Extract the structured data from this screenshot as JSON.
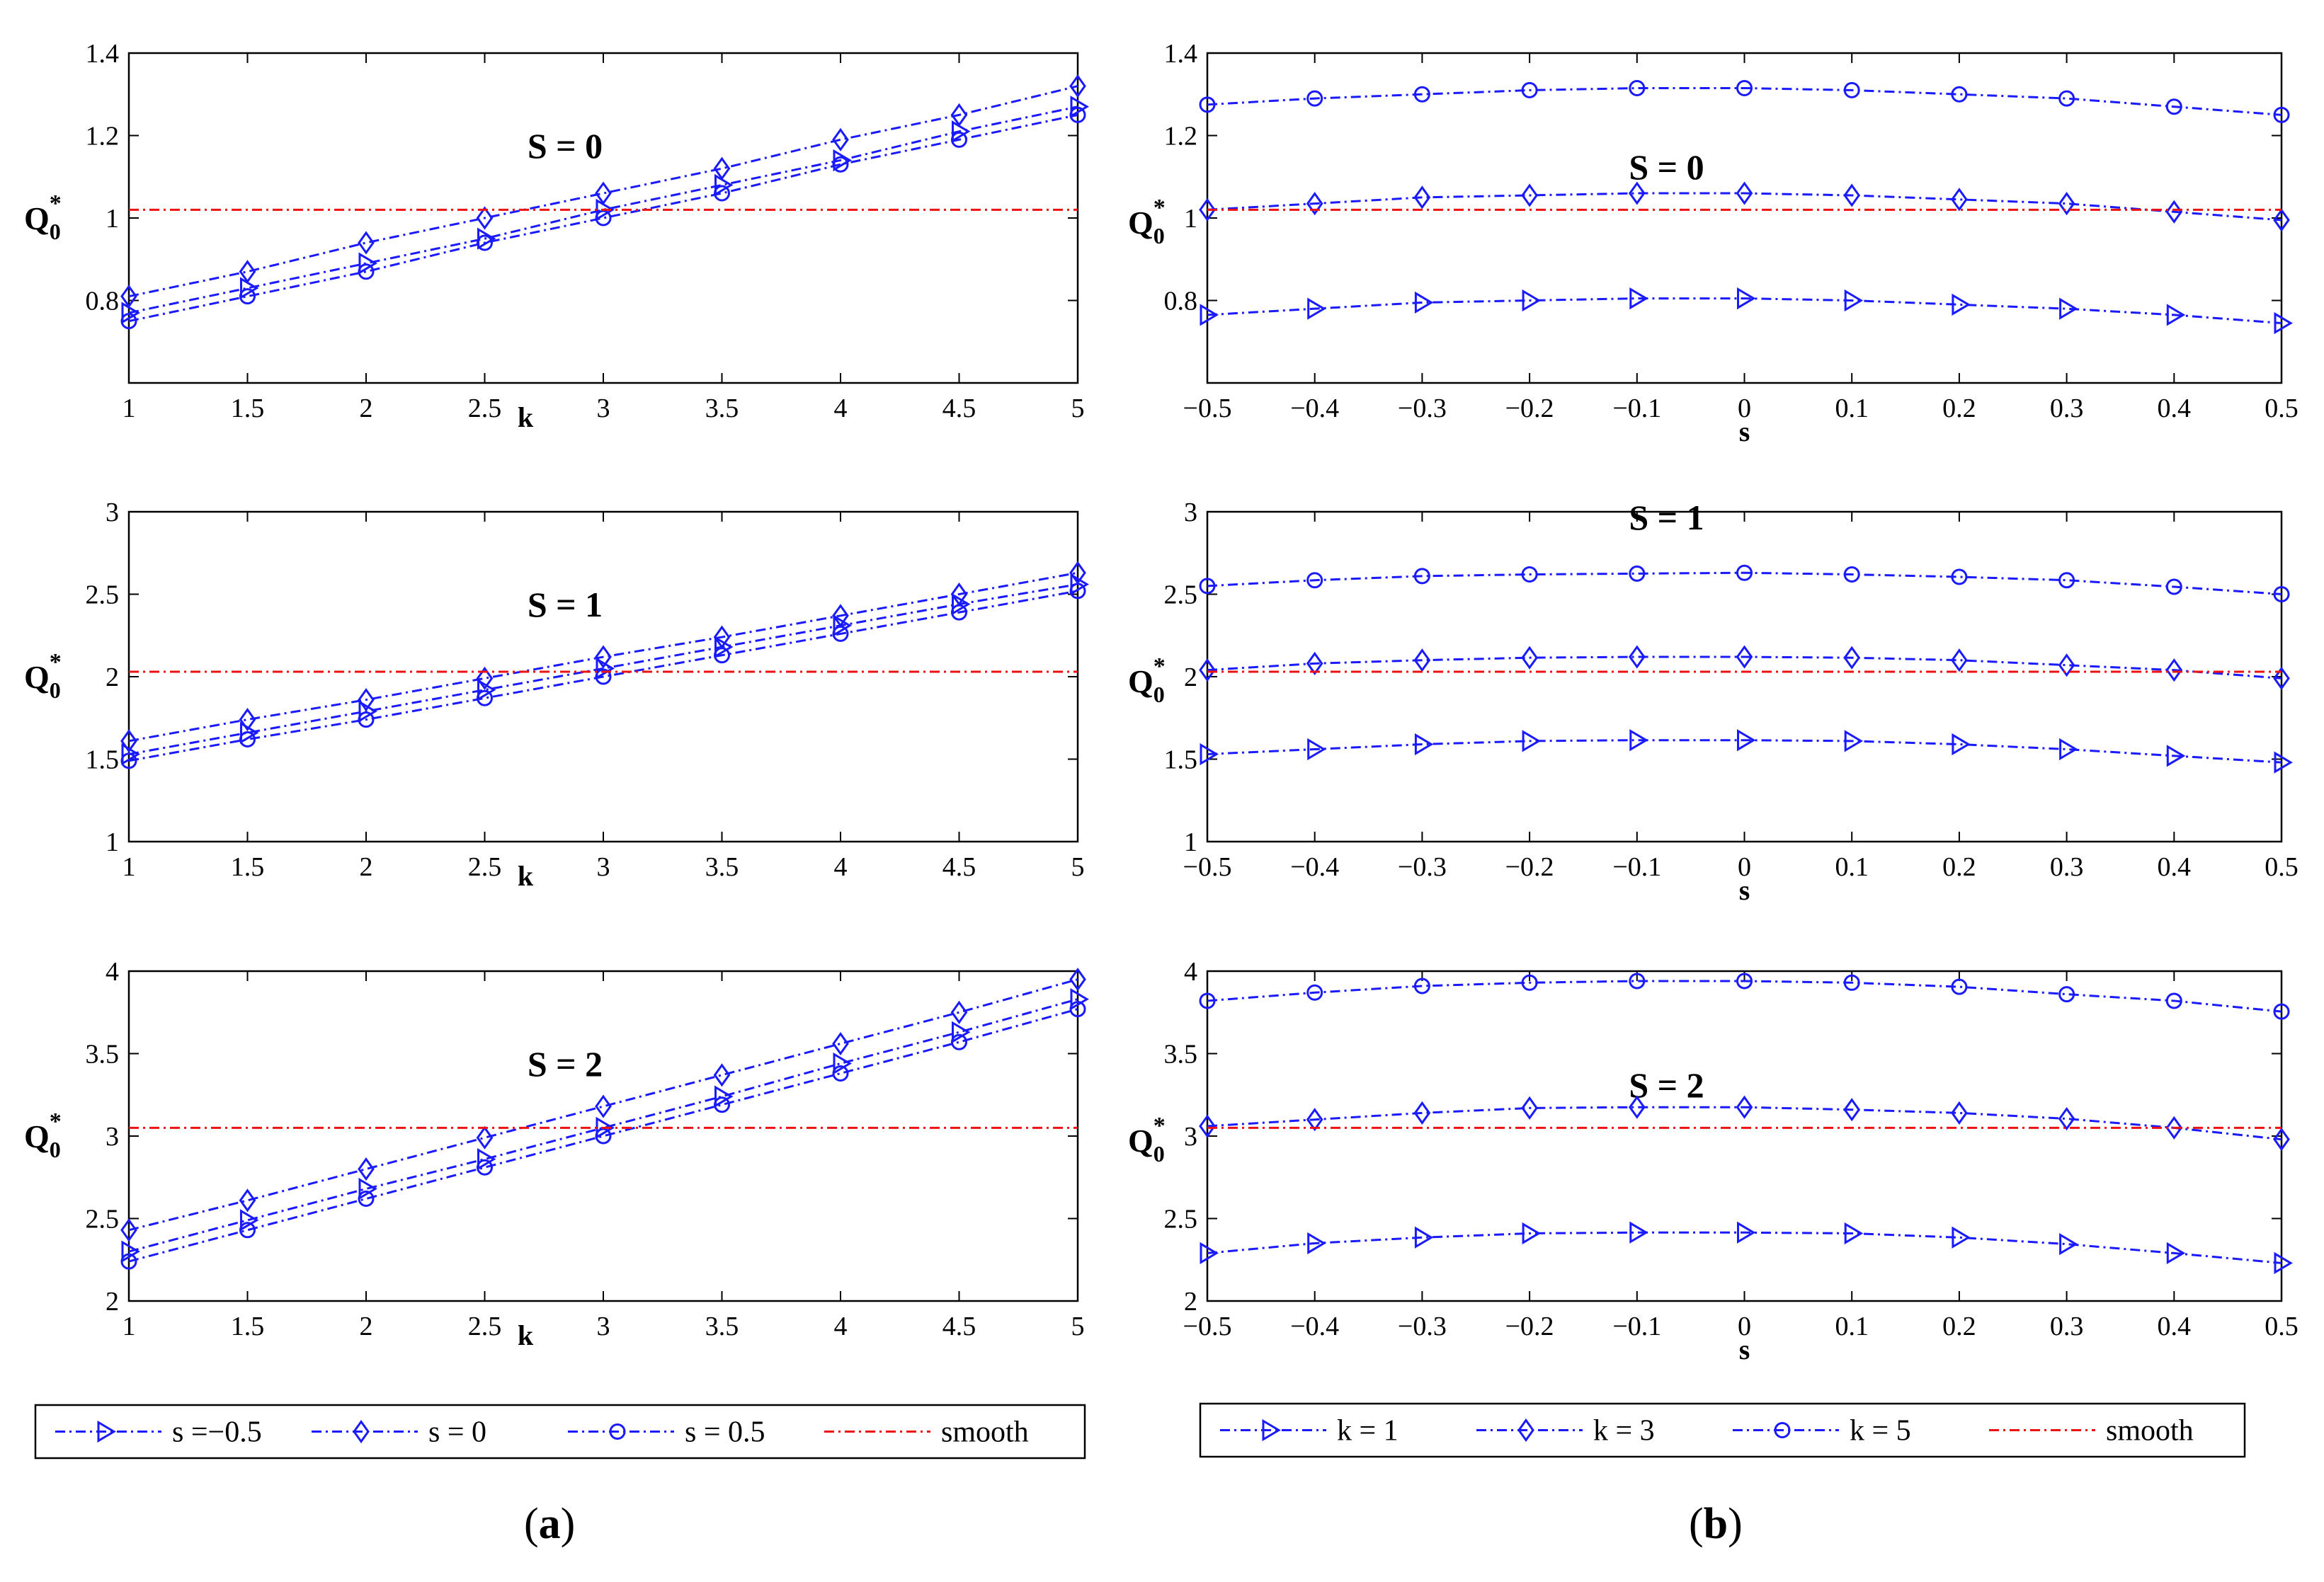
{
  "chart_data": [
    {
      "id": "a1",
      "type": "line",
      "title": "S = 0",
      "xlabel": "k",
      "ylabel": "Q",
      "x": [
        1,
        1.5,
        2,
        2.5,
        3,
        3.5,
        4,
        4.5,
        5
      ],
      "xlim": [
        1,
        5
      ],
      "ylim": [
        0.6,
        1.4
      ],
      "xticks": [
        "1",
        "1.5",
        "2",
        "2.5",
        "3",
        "3.5",
        "4",
        "4.5",
        "5"
      ],
      "yticks": [
        "0.8",
        "1",
        "1.2",
        "1.4"
      ],
      "series": [
        {
          "name": "s =−0.5",
          "marker": "triangle",
          "values": [
            0.77,
            0.83,
            0.89,
            0.95,
            1.02,
            1.08,
            1.14,
            1.21,
            1.27
          ]
        },
        {
          "name": "s = 0",
          "marker": "diamond",
          "values": [
            0.81,
            0.87,
            0.94,
            1.0,
            1.06,
            1.12,
            1.19,
            1.25,
            1.32
          ]
        },
        {
          "name": "s = 0.5",
          "marker": "circle",
          "values": [
            0.75,
            0.81,
            0.87,
            0.94,
            1.0,
            1.06,
            1.13,
            1.19,
            1.25
          ]
        },
        {
          "name": "smooth",
          "marker": "none",
          "values": [
            1.02,
            1.02,
            1.02,
            1.02,
            1.02,
            1.02,
            1.02,
            1.02,
            1.02
          ]
        }
      ]
    },
    {
      "id": "a2",
      "type": "line",
      "title": "S = 1",
      "xlabel": "k",
      "ylabel": "Q",
      "x": [
        1,
        1.5,
        2,
        2.5,
        3,
        3.5,
        4,
        4.5,
        5
      ],
      "xlim": [
        1,
        5
      ],
      "ylim": [
        1,
        3
      ],
      "xticks": [
        "1",
        "1.5",
        "2",
        "2.5",
        "3",
        "3.5",
        "4",
        "4.5",
        "5"
      ],
      "yticks": [
        "1",
        "1.5",
        "2",
        "2.5",
        "3"
      ],
      "series": [
        {
          "name": "s =−0.5",
          "marker": "triangle",
          "values": [
            1.53,
            1.66,
            1.79,
            1.92,
            2.05,
            2.18,
            2.31,
            2.44,
            2.56
          ]
        },
        {
          "name": "s = 0",
          "marker": "diamond",
          "values": [
            1.61,
            1.74,
            1.86,
            1.99,
            2.12,
            2.24,
            2.37,
            2.5,
            2.63
          ]
        },
        {
          "name": "s = 0.5",
          "marker": "circle",
          "values": [
            1.49,
            1.62,
            1.74,
            1.87,
            2.0,
            2.13,
            2.26,
            2.39,
            2.52
          ]
        },
        {
          "name": "smooth",
          "marker": "none",
          "values": [
            2.03,
            2.03,
            2.03,
            2.03,
            2.03,
            2.03,
            2.03,
            2.03,
            2.03
          ]
        }
      ]
    },
    {
      "id": "a3",
      "type": "line",
      "title": "S = 2",
      "xlabel": "k",
      "ylabel": "Q",
      "x": [
        1,
        1.5,
        2,
        2.5,
        3,
        3.5,
        4,
        4.5,
        5
      ],
      "xlim": [
        1,
        5
      ],
      "ylim": [
        2,
        4
      ],
      "xticks": [
        "1",
        "1.5",
        "2",
        "2.5",
        "3",
        "3.5",
        "4",
        "4.5",
        "5"
      ],
      "yticks": [
        "2",
        "2.5",
        "3",
        "3.5",
        "4"
      ],
      "series": [
        {
          "name": "s =−0.5",
          "marker": "triangle",
          "values": [
            2.3,
            2.49,
            2.68,
            2.86,
            3.05,
            3.24,
            3.44,
            3.63,
            3.83
          ]
        },
        {
          "name": "s = 0",
          "marker": "diamond",
          "values": [
            2.43,
            2.61,
            2.8,
            2.99,
            3.18,
            3.37,
            3.56,
            3.75,
            3.95
          ]
        },
        {
          "name": "s = 0.5",
          "marker": "circle",
          "values": [
            2.24,
            2.43,
            2.62,
            2.81,
            3.0,
            3.19,
            3.38,
            3.57,
            3.77
          ]
        },
        {
          "name": "smooth",
          "marker": "none",
          "values": [
            3.05,
            3.05,
            3.05,
            3.05,
            3.05,
            3.05,
            3.05,
            3.05,
            3.05
          ]
        }
      ]
    },
    {
      "id": "b1",
      "type": "line",
      "title": "S = 0",
      "xlabel": "s",
      "ylabel": "Q",
      "x": [
        -0.5,
        -0.4,
        -0.3,
        -0.2,
        -0.1,
        0,
        0.1,
        0.2,
        0.3,
        0.4,
        0.5
      ],
      "xlim": [
        -0.5,
        0.5
      ],
      "ylim": [
        0.6,
        1.4
      ],
      "xticks": [
        "−0.5",
        "−0.4",
        "−0.3",
        "−0.2",
        "−0.1",
        "0",
        "0.1",
        "0.2",
        "0.3",
        "0.4",
        "0.5"
      ],
      "yticks": [
        "0.8",
        "1",
        "1.2",
        "1.4"
      ],
      "series": [
        {
          "name": "k = 1",
          "marker": "triangle",
          "values": [
            0.765,
            0.78,
            0.795,
            0.8,
            0.805,
            0.805,
            0.8,
            0.79,
            0.78,
            0.765,
            0.745
          ]
        },
        {
          "name": "k = 3",
          "marker": "diamond",
          "values": [
            1.02,
            1.035,
            1.05,
            1.055,
            1.06,
            1.06,
            1.055,
            1.045,
            1.035,
            1.015,
            0.995
          ]
        },
        {
          "name": "k = 5",
          "marker": "circle",
          "values": [
            1.275,
            1.29,
            1.3,
            1.31,
            1.315,
            1.315,
            1.31,
            1.3,
            1.29,
            1.27,
            1.25
          ]
        },
        {
          "name": "smooth",
          "marker": "none",
          "values": [
            1.02,
            1.02,
            1.02,
            1.02,
            1.02,
            1.02,
            1.02,
            1.02,
            1.02,
            1.02,
            1.02
          ]
        }
      ]
    },
    {
      "id": "b2",
      "type": "line",
      "title": "S = 1",
      "xlabel": "s",
      "ylabel": "Q",
      "x": [
        -0.5,
        -0.4,
        -0.3,
        -0.2,
        -0.1,
        0,
        0.1,
        0.2,
        0.3,
        0.4,
        0.5
      ],
      "xlim": [
        -0.5,
        0.5
      ],
      "ylim": [
        1,
        3
      ],
      "xticks": [
        "−0.5",
        "−0.4",
        "−0.3",
        "−0.2",
        "−0.1",
        "0",
        "0.1",
        "0.2",
        "0.3",
        "0.4",
        "0.5"
      ],
      "yticks": [
        "1",
        "1.5",
        "2",
        "2.5",
        "3"
      ],
      "series": [
        {
          "name": "k = 1",
          "marker": "triangle",
          "values": [
            1.53,
            1.56,
            1.59,
            1.61,
            1.615,
            1.615,
            1.61,
            1.59,
            1.56,
            1.52,
            1.48
          ]
        },
        {
          "name": "k = 3",
          "marker": "diamond",
          "values": [
            2.04,
            2.08,
            2.1,
            2.115,
            2.12,
            2.12,
            2.115,
            2.1,
            2.07,
            2.04,
            1.99
          ]
        },
        {
          "name": "k = 5",
          "marker": "circle",
          "values": [
            2.55,
            2.585,
            2.61,
            2.62,
            2.625,
            2.63,
            2.62,
            2.605,
            2.585,
            2.545,
            2.5
          ]
        },
        {
          "name": "smooth",
          "marker": "none",
          "values": [
            2.03,
            2.03,
            2.03,
            2.03,
            2.03,
            2.03,
            2.03,
            2.03,
            2.03,
            2.03,
            2.03
          ]
        }
      ]
    },
    {
      "id": "b3",
      "type": "line",
      "title": "S = 2",
      "xlabel": "s",
      "ylabel": "Q",
      "x": [
        -0.5,
        -0.4,
        -0.3,
        -0.2,
        -0.1,
        0,
        0.1,
        0.2,
        0.3,
        0.4,
        0.5
      ],
      "xlim": [
        -0.5,
        0.5
      ],
      "ylim": [
        2,
        4
      ],
      "xticks": [
        "−0.5",
        "−0.4",
        "−0.3",
        "−0.2",
        "−0.1",
        "0",
        "0.1",
        "0.2",
        "0.3",
        "0.4",
        "0.5"
      ],
      "yticks": [
        "2",
        "2.5",
        "3",
        "3.5",
        "4"
      ],
      "series": [
        {
          "name": "k = 1",
          "marker": "triangle",
          "values": [
            2.29,
            2.35,
            2.385,
            2.41,
            2.415,
            2.415,
            2.41,
            2.385,
            2.345,
            2.29,
            2.23
          ]
        },
        {
          "name": "k = 3",
          "marker": "diamond",
          "values": [
            3.06,
            3.1,
            3.14,
            3.17,
            3.175,
            3.175,
            3.16,
            3.14,
            3.105,
            3.05,
            2.98
          ]
        },
        {
          "name": "k = 5",
          "marker": "circle",
          "values": [
            3.82,
            3.87,
            3.91,
            3.93,
            3.94,
            3.94,
            3.93,
            3.905,
            3.86,
            3.82,
            3.755
          ]
        },
        {
          "name": "smooth",
          "marker": "none",
          "values": [
            3.05,
            3.05,
            3.05,
            3.05,
            3.05,
            3.05,
            3.05,
            3.05,
            3.05,
            3.05,
            3.05
          ]
        }
      ]
    }
  ],
  "legends": {
    "a": [
      "s =−0.5",
      "s = 0",
      "s = 0.5",
      "smooth"
    ],
    "b": [
      "k = 1",
      "k = 3",
      "k = 5",
      "smooth"
    ]
  },
  "y_label": {
    "main": "Q",
    "sub": "0",
    "sup": "*"
  },
  "panel_labels": {
    "a": "a",
    "b": "b"
  },
  "colors": {
    "series": "#1a1aff",
    "smooth": "#ee1111",
    "axes": "#000000"
  }
}
